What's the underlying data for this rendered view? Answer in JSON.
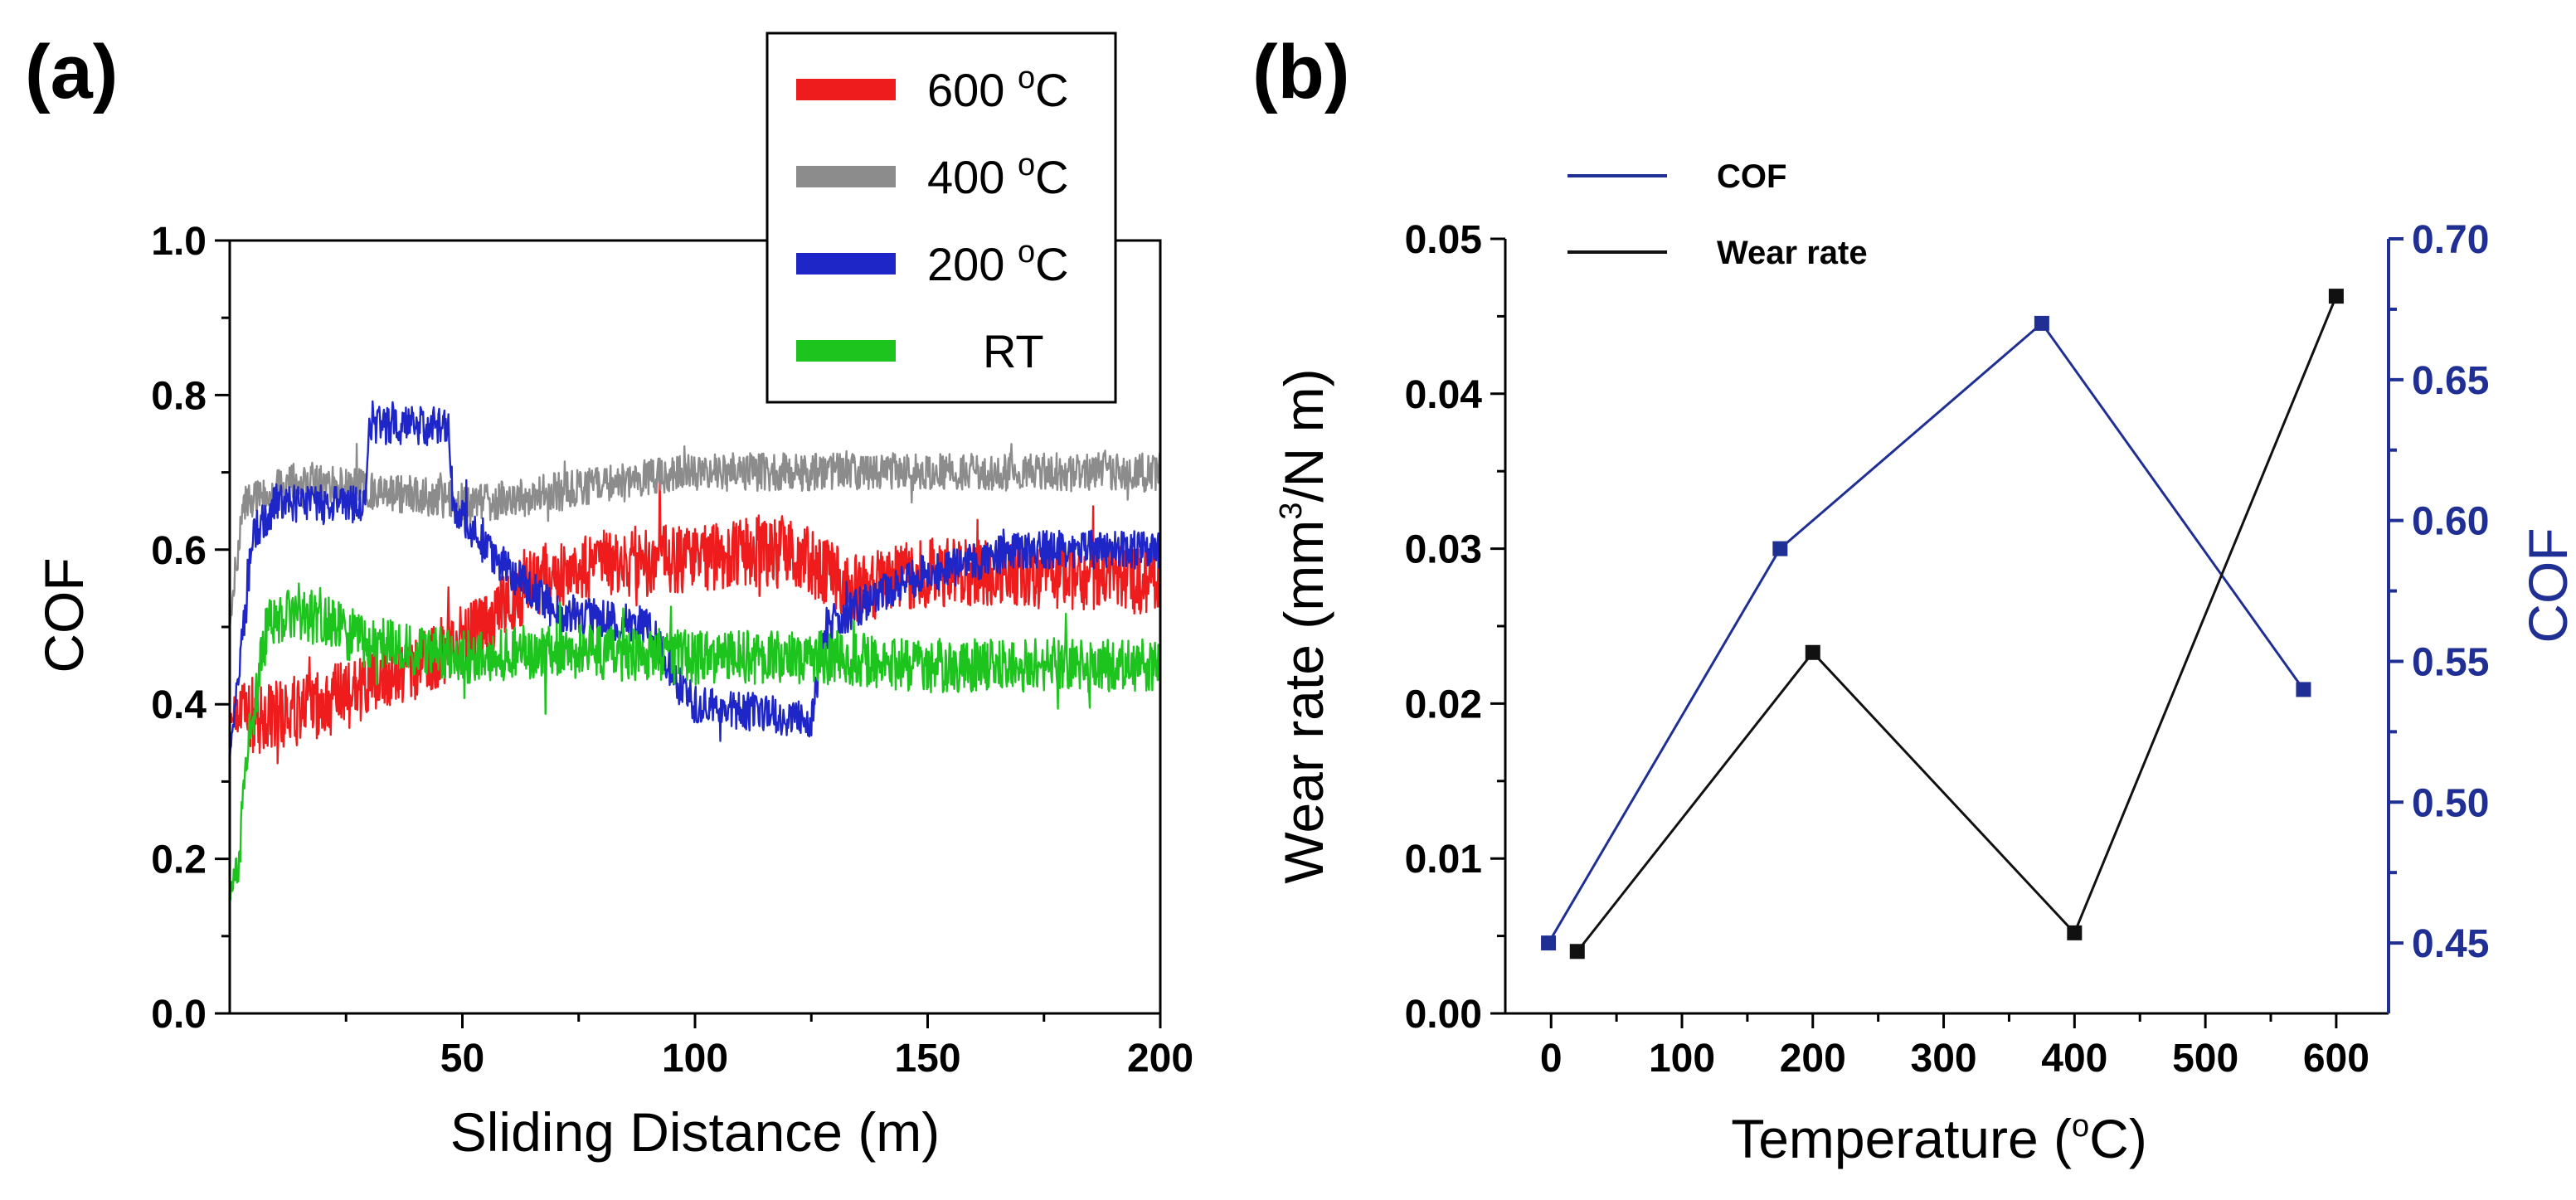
{
  "chart_data": [
    {
      "panel": "(a)",
      "type": "line",
      "title": "",
      "xlabel": "Sliding Distance (m)",
      "ylabel": "COF",
      "xlim": [
        0,
        200
      ],
      "ylim": [
        0.0,
        1.0
      ],
      "x_ticks": [
        "50",
        "100",
        "150",
        "200"
      ],
      "x_tick_values": [
        50,
        100,
        150,
        200
      ],
      "y_ticks": [
        "0.0",
        "0.2",
        "0.4",
        "0.6",
        "0.8",
        "1.0"
      ],
      "y_tick_values": [
        0.0,
        0.2,
        0.4,
        0.6,
        0.8,
        1.0
      ],
      "legend_position": "top-right",
      "series": [
        {
          "name": "600 °C",
          "label_main": "600 ",
          "label_sup": "o",
          "label_end": "C",
          "color": "#ee1c1c",
          "noise": 0.045,
          "x": [
            0,
            5,
            20,
            40,
            55,
            65,
            80,
            100,
            120,
            135,
            150,
            170,
            200
          ],
          "mean": [
            0.39,
            0.38,
            0.4,
            0.45,
            0.5,
            0.56,
            0.58,
            0.59,
            0.6,
            0.55,
            0.57,
            0.57,
            0.56
          ]
        },
        {
          "name": "400 °C",
          "label_main": "400 ",
          "label_sup": "o",
          "label_end": "C",
          "color": "#8c8c8c",
          "noise": 0.025,
          "x": [
            0,
            3,
            15,
            40,
            55,
            65,
            100,
            150,
            200
          ],
          "mean": [
            0.5,
            0.66,
            0.69,
            0.67,
            0.66,
            0.67,
            0.7,
            0.7,
            0.7
          ]
        },
        {
          "name": "200 °C",
          "label_main": "200 ",
          "label_sup": "o",
          "label_end": "C",
          "color": "#1f26c8",
          "noise": 0.025,
          "x": [
            0,
            5,
            10,
            29,
            30,
            47,
            48,
            55,
            70,
            90,
            97,
            100,
            125,
            128,
            145,
            170,
            200
          ],
          "mean": [
            0.33,
            0.62,
            0.66,
            0.66,
            0.76,
            0.76,
            0.66,
            0.6,
            0.52,
            0.5,
            0.42,
            0.4,
            0.38,
            0.5,
            0.56,
            0.6,
            0.6
          ]
        },
        {
          "name": "RT",
          "label_main": "RT",
          "label_sup": "",
          "label_end": "",
          "color": "#1ec41e",
          "noise": 0.035,
          "x": [
            0,
            2,
            4,
            8,
            15,
            30,
            50,
            70,
            100,
            130,
            150,
            200
          ],
          "mean": [
            0.15,
            0.2,
            0.35,
            0.5,
            0.52,
            0.48,
            0.46,
            0.47,
            0.46,
            0.46,
            0.45,
            0.45
          ]
        }
      ]
    },
    {
      "panel": "(b)",
      "type": "line",
      "title": "",
      "xlabel_main": "Temperature (",
      "xlabel_sup": "o",
      "xlabel_end": "C)",
      "ylabel_left_main": "Wear rate (mm",
      "ylabel_left_sup": "3",
      "ylabel_left_end": "/N m)",
      "ylabel_right": "COF",
      "xlim": [
        -35,
        640
      ],
      "ylim_left": [
        0.0,
        0.05
      ],
      "ylim_right": [
        0.425,
        0.7
      ],
      "x_ticks": [
        "0",
        "100",
        "200",
        "300",
        "400",
        "500",
        "600"
      ],
      "x_tick_values": [
        0,
        100,
        200,
        300,
        400,
        500,
        600
      ],
      "y_left_ticks": [
        "0.00",
        "0.01",
        "0.02",
        "0.03",
        "0.04",
        "0.05"
      ],
      "y_left_tick_values": [
        0.0,
        0.01,
        0.02,
        0.03,
        0.04,
        0.05
      ],
      "y_right_ticks": [
        "0.45",
        "0.50",
        "0.55",
        "0.60",
        "0.65",
        "0.70"
      ],
      "y_right_tick_values": [
        0.45,
        0.5,
        0.55,
        0.6,
        0.65,
        0.7
      ],
      "legend_position": "top-left",
      "series": [
        {
          "name": "COF",
          "axis": "right",
          "color": "#1f2f94",
          "x": [
            -2,
            175,
            375,
            575
          ],
          "y": [
            0.45,
            0.59,
            0.67,
            0.54
          ]
        },
        {
          "name": "Wear rate",
          "axis": "left",
          "color": "#111111",
          "x": [
            20,
            200,
            400,
            600
          ],
          "y": [
            0.004,
            0.0233,
            0.0052,
            0.0463
          ]
        }
      ]
    }
  ]
}
